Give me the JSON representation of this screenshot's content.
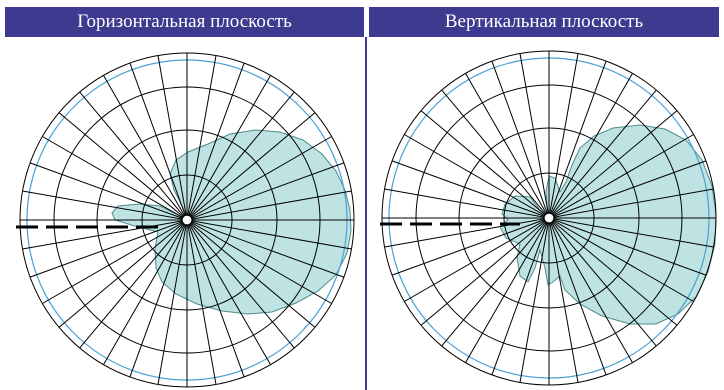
{
  "panels": {
    "left": {
      "title": "Горизонтальная плоскость"
    },
    "right": {
      "title": "Вертикальная плоскость"
    }
  },
  "colors": {
    "header_bg": "#3d3a8f",
    "header_text": "#ffffff",
    "pattern_fill": "#bfe3e3",
    "pattern_stroke": "#4e8c8c",
    "reference_ring": "#4aa0d6",
    "grid": "#000000"
  }
}
